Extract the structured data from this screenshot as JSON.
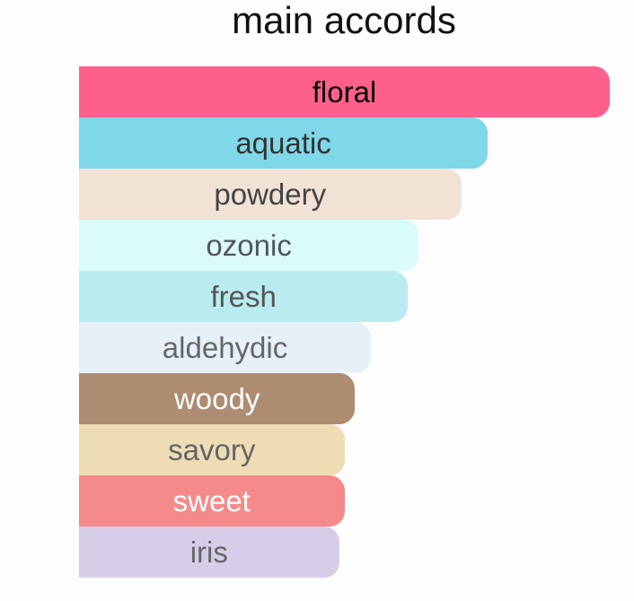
{
  "chart_data": {
    "type": "bar",
    "orientation": "horizontal",
    "title": "main accords",
    "categories": [
      "floral",
      "aquatic",
      "powdery",
      "ozonic",
      "fresh",
      "aldehydic",
      "woody",
      "savory",
      "sweet",
      "iris"
    ],
    "values": [
      100,
      77,
      72,
      64,
      62,
      55,
      52,
      50,
      50,
      49
    ],
    "colors": [
      "#fe5f8c",
      "#80d7e7",
      "#f1e2d6",
      "#d9fcfb",
      "#b9ecf1",
      "#e6f0f8",
      "#ad8d72",
      "#eedcb4",
      "#f48a8a",
      "#d8cde8"
    ],
    "label_colors": [
      "#000000",
      "#333333",
      "#444444",
      "#555555",
      "#555555",
      "#666666",
      "#ffffff",
      "#666666",
      "#ffffff",
      "#666666"
    ],
    "xlim": [
      0,
      100
    ],
    "grid": false,
    "legend": "none"
  }
}
